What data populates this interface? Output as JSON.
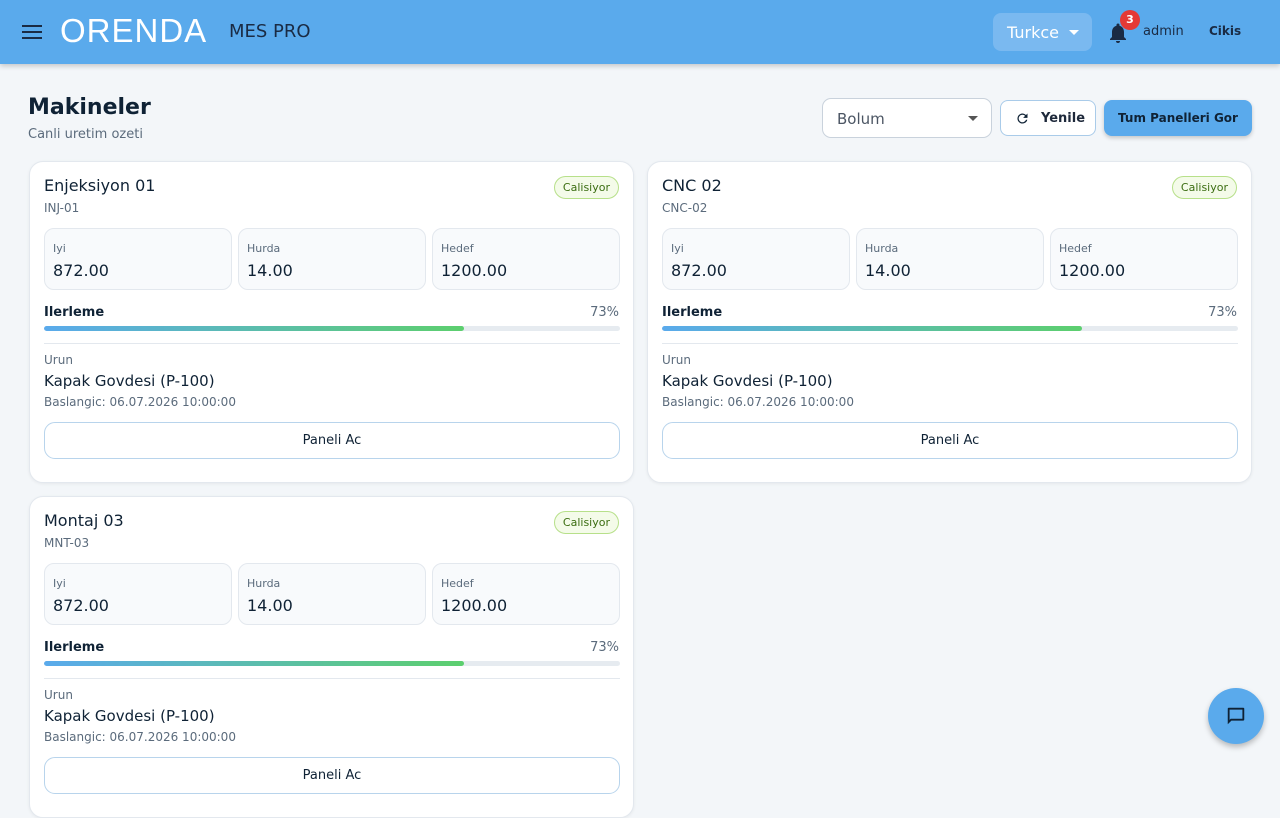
{
  "header": {
    "brand": "ORENDA",
    "product": "MES PRO",
    "language": "Turkce",
    "notification_count": "3",
    "user": "admin",
    "logout": "Cikis"
  },
  "page": {
    "title": "Makineler",
    "subtitle": "Canli uretim ozeti",
    "filter": "Bolum",
    "refresh": "Yenile",
    "all_panels": "Tum Panelleri Gor"
  },
  "machines": [
    {
      "name": "Enjeksiyon 01",
      "code": "INJ-01",
      "status": "Calisiyor",
      "stats": [
        {
          "label": "Iyi",
          "value": "872.00"
        },
        {
          "label": "Hurda",
          "value": "14.00"
        },
        {
          "label": "Hedef",
          "value": "1200.00"
        }
      ],
      "progress_label": "Ilerleme",
      "progress": {
        "value": 73,
        "label": "73%"
      },
      "product_label": "Urun",
      "product": "Kapak Govdesi (P-100)",
      "start": "Baslangic: 06.07.2026 10:00:00",
      "button": "Paneli Ac"
    },
    {
      "name": "CNC 02",
      "code": "CNC-02",
      "status": "Calisiyor",
      "stats": [
        {
          "label": "Iyi",
          "value": "872.00"
        },
        {
          "label": "Hurda",
          "value": "14.00"
        },
        {
          "label": "Hedef",
          "value": "1200.00"
        }
      ],
      "progress_label": "Ilerleme",
      "progress": {
        "value": 73,
        "label": "73%"
      },
      "product_label": "Urun",
      "product": "Kapak Govdesi (P-100)",
      "start": "Baslangic: 06.07.2026 10:00:00",
      "button": "Paneli Ac"
    },
    {
      "name": "Montaj 03",
      "code": "MNT-03",
      "status": "Calisiyor",
      "stats": [
        {
          "label": "Iyi",
          "value": "872.00"
        },
        {
          "label": "Hurda",
          "value": "14.00"
        },
        {
          "label": "Hedef",
          "value": "1200.00"
        }
      ],
      "progress_label": "Ilerleme",
      "progress": {
        "value": 73,
        "label": "73%"
      },
      "product_label": "Urun",
      "product": "Kapak Govdesi (P-100)",
      "start": "Baslangic: 06.07.2026 10:00:00",
      "button": "Paneli Ac"
    }
  ]
}
